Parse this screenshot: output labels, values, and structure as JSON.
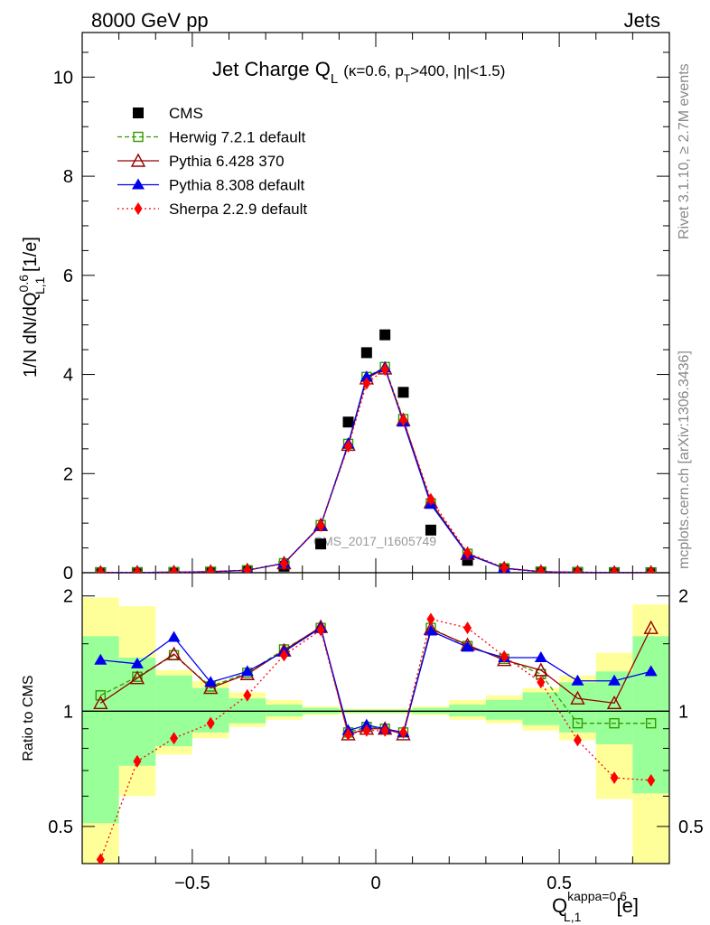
{
  "header": {
    "left": "8000 GeV pp",
    "right": "Jets"
  },
  "side_labels": {
    "upper": "Rivet 3.1.10, ≥ 2.7M events",
    "lower": "mcplots.cern.ch [arXiv:1306.3436]"
  },
  "watermark": "CMS_2017_I1605749",
  "title": {
    "main": "Jet Charge Q",
    "main_sub": "L",
    "params_a": "(κ=0.6, p",
    "params_sub": "T",
    "params_b": ">400, |η|<1.5)"
  },
  "ylabel_top": {
    "pre": "1/N dN/dQ",
    "sup": "0.6",
    "sub": "L,1",
    "post": " [1/e]"
  },
  "ylabel_ratio": "Ratio to CMS",
  "xlabel": {
    "main": "Q",
    "sup": "kappa=0.6",
    "sub": "L,1",
    "post": " [e]"
  },
  "legend": [
    {
      "label": "CMS",
      "color": "#000000",
      "marker": "square-filled"
    },
    {
      "label": "Herwig 7.2.1 default",
      "color": "#339900",
      "marker": "square-open",
      "dash": "dashed"
    },
    {
      "label": "Pythia 6.428 370",
      "color": "#990000",
      "marker": "triangle-open",
      "dash": "solid"
    },
    {
      "label": "Pythia 8.308 default",
      "color": "#0000ee",
      "marker": "triangle-filled",
      "dash": "solid"
    },
    {
      "label": "Sherpa 2.2.9 default",
      "color": "#ff0000",
      "marker": "diamond-filled",
      "dash": "dotted"
    }
  ],
  "chart_data": [
    {
      "type": "scatter",
      "panel": "main",
      "xlim": [
        -0.8,
        0.8
      ],
      "ylim": [
        0,
        10.9
      ],
      "x": [
        -0.75,
        -0.65,
        -0.55,
        -0.45,
        -0.35,
        -0.25,
        -0.15,
        -0.075,
        -0.025,
        0.025,
        0.075,
        0.15,
        0.25,
        0.35,
        0.45,
        0.55,
        0.65,
        0.75
      ],
      "series": [
        {
          "name": "CMS",
          "values": [
            0.002,
            0.003,
            0.005,
            0.01,
            0.03,
            0.13,
            0.58,
            3.04,
            4.44,
            4.8,
            3.64,
            0.86,
            0.25,
            0.06,
            0.014,
            0.006,
            0.002,
            0.001
          ]
        },
        {
          "name": "Herwig 7.2.1 default",
          "values": [
            0.003,
            0.005,
            0.01,
            0.02,
            0.05,
            0.19,
            0.96,
            2.6,
            3.95,
            4.15,
            3.1,
            1.4,
            0.38,
            0.09,
            0.02,
            0.008,
            0.003,
            0.002
          ]
        },
        {
          "name": "Pythia 6.428 370",
          "values": [
            0.003,
            0.005,
            0.01,
            0.02,
            0.05,
            0.19,
            0.96,
            2.58,
            3.92,
            4.12,
            3.08,
            1.42,
            0.38,
            0.09,
            0.02,
            0.008,
            0.003,
            0.002
          ]
        },
        {
          "name": "Pythia 8.308 default",
          "values": [
            0.003,
            0.005,
            0.01,
            0.02,
            0.05,
            0.19,
            0.95,
            2.6,
            3.95,
            4.13,
            3.04,
            1.38,
            0.37,
            0.09,
            0.02,
            0.008,
            0.003,
            0.002
          ]
        },
        {
          "name": "Sherpa 2.2.9 default",
          "values": [
            0.003,
            0.005,
            0.01,
            0.02,
            0.05,
            0.18,
            0.95,
            2.55,
            3.82,
            4.1,
            3.08,
            1.48,
            0.4,
            0.1,
            0.02,
            0.008,
            0.003,
            0.002
          ]
        }
      ],
      "yticks": [
        0,
        2,
        4,
        6,
        8,
        10
      ]
    },
    {
      "type": "line",
      "panel": "ratio",
      "xlim": [
        -0.8,
        0.8
      ],
      "ylim": [
        0.4,
        2.3
      ],
      "log_y": true,
      "x": [
        -0.75,
        -0.65,
        -0.55,
        -0.45,
        -0.35,
        -0.25,
        -0.15,
        -0.075,
        -0.025,
        0.025,
        0.075,
        0.15,
        0.25,
        0.35,
        0.45,
        0.55,
        0.65,
        0.75
      ],
      "bin_edges": [
        -0.8,
        -0.7,
        -0.6,
        -0.5,
        -0.4,
        -0.3,
        -0.2,
        -0.1,
        -0.05,
        0.0,
        0.05,
        0.1,
        0.2,
        0.3,
        0.4,
        0.5,
        0.6,
        0.7,
        0.8
      ],
      "band_green": [
        [
          0.51,
          1.57
        ],
        [
          0.72,
          1.38
        ],
        [
          0.81,
          1.24
        ],
        [
          0.88,
          1.15
        ],
        [
          0.93,
          1.08
        ],
        [
          0.97,
          1.04
        ],
        [
          0.985,
          1.02
        ],
        [
          0.99,
          1.01
        ],
        [
          0.99,
          1.01
        ],
        [
          0.99,
          1.01
        ],
        [
          0.99,
          1.01
        ],
        [
          0.985,
          1.02
        ],
        [
          0.97,
          1.04
        ],
        [
          0.95,
          1.07
        ],
        [
          0.92,
          1.12
        ],
        [
          0.88,
          1.19
        ],
        [
          0.82,
          1.27
        ],
        [
          0.61,
          1.57
        ]
      ],
      "band_yellow": [
        [
          0.36,
          1.98
        ],
        [
          0.6,
          1.88
        ],
        [
          0.77,
          1.28
        ],
        [
          0.85,
          1.2
        ],
        [
          0.91,
          1.12
        ],
        [
          0.95,
          1.07
        ],
        [
          0.975,
          1.03
        ],
        [
          0.985,
          1.015
        ],
        [
          0.985,
          1.015
        ],
        [
          0.985,
          1.015
        ],
        [
          0.985,
          1.015
        ],
        [
          0.975,
          1.03
        ],
        [
          0.95,
          1.07
        ],
        [
          0.93,
          1.1
        ],
        [
          0.89,
          1.15
        ],
        [
          0.84,
          1.24
        ],
        [
          0.59,
          1.42
        ],
        [
          0.37,
          1.9
        ]
      ],
      "series": [
        {
          "name": "Herwig 7.2.1 default",
          "values": [
            1.1,
            1.23,
            1.4,
            1.16,
            1.26,
            1.45,
            1.65,
            0.88,
            0.91,
            0.9,
            0.88,
            1.65,
            1.48,
            1.37,
            1.25,
            0.93,
            0.93,
            0.93
          ]
        },
        {
          "name": "Pythia 6.428 370",
          "values": [
            1.05,
            1.22,
            1.41,
            1.15,
            1.25,
            1.44,
            1.66,
            0.87,
            0.9,
            0.9,
            0.87,
            1.64,
            1.49,
            1.36,
            1.28,
            1.08,
            1.05,
            1.65
          ]
        },
        {
          "name": "Pythia 8.308 default",
          "values": [
            1.36,
            1.33,
            1.56,
            1.19,
            1.27,
            1.43,
            1.65,
            0.89,
            0.92,
            0.9,
            0.88,
            1.62,
            1.47,
            1.38,
            1.38,
            1.2,
            1.2,
            1.27
          ]
        },
        {
          "name": "Sherpa 2.2.9 default",
          "values": [
            0.41,
            0.74,
            0.85,
            0.93,
            1.1,
            1.4,
            1.63,
            0.87,
            0.89,
            0.89,
            0.88,
            1.74,
            1.65,
            1.39,
            1.19,
            0.84,
            0.67,
            0.66
          ]
        }
      ],
      "yticks": [
        0.5,
        1,
        2
      ]
    }
  ],
  "x_ticks": [
    "−0.5",
    "0",
    "0.5"
  ]
}
